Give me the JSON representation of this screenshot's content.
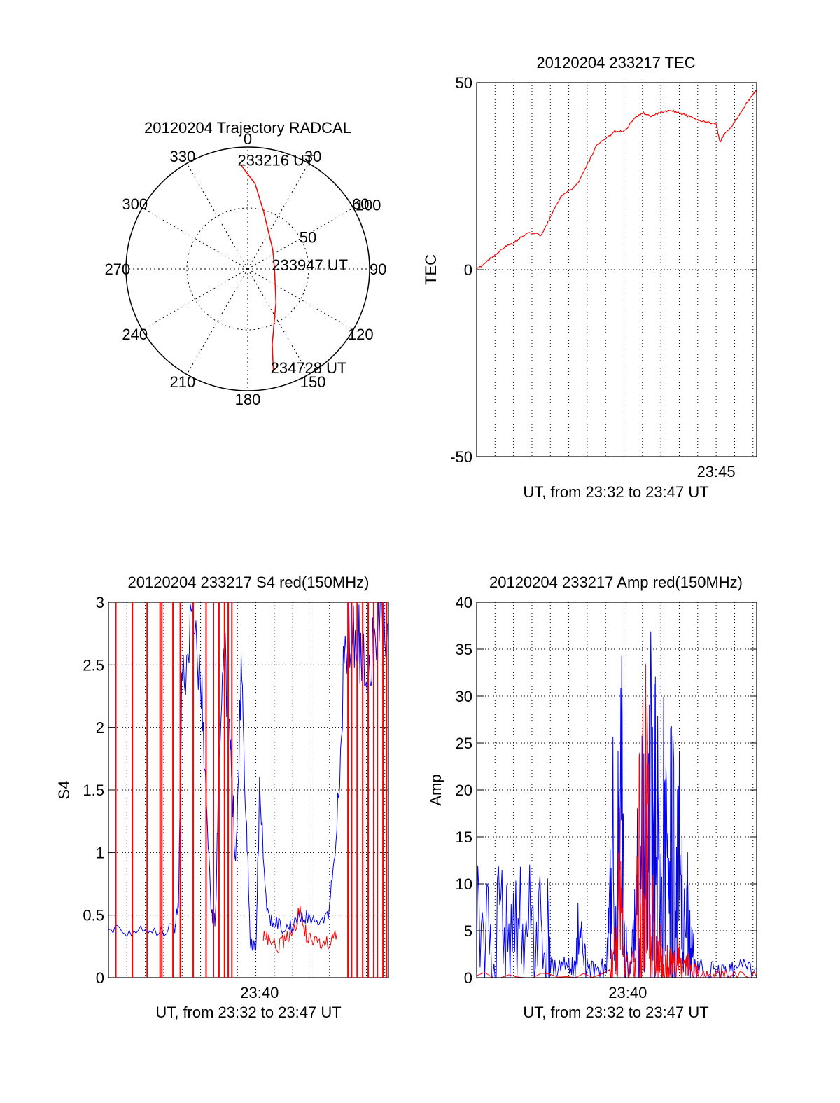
{
  "chart_data": [
    {
      "type": "polar",
      "title": "20120204 Trajectory RADCAL",
      "angle_labels": [
        "0",
        "30",
        "60",
        "90",
        "120",
        "150",
        "180",
        "210",
        "240",
        "270",
        "300",
        "330"
      ],
      "radial_labels": [
        "50",
        "100"
      ],
      "radial_max": 100,
      "trajectory": {
        "color": "#ff0000",
        "points": [
          [
            -4,
            86
          ],
          [
            5,
            70
          ],
          [
            16,
            48
          ],
          [
            52,
            26
          ],
          [
            90,
            22
          ],
          [
            140,
            36
          ],
          [
            162,
            65
          ],
          [
            166,
            87
          ]
        ]
      },
      "annotations": [
        {
          "text": "233216 UT",
          "az": -4,
          "r": 86
        },
        {
          "text": "233947 UT",
          "az": 90,
          "r": 22
        },
        {
          "text": "234728 UT",
          "az": 166,
          "r": 87
        }
      ],
      "grid": true
    },
    {
      "type": "line",
      "title": "20120204 233217 TEC",
      "xlabel": "UT, from 23:32 to 23:47 UT",
      "ylabel": "TEC",
      "xlim": [
        0,
        15.2
      ],
      "ylim": [
        -50,
        50
      ],
      "xtick_labels": [
        {
          "x": 13.0,
          "label": "23:45"
        }
      ],
      "yticks": [
        -50,
        0,
        50
      ],
      "grid": true,
      "series": [
        {
          "color": "#ff0000",
          "x": [
            0,
            0.5,
            1.0,
            1.5,
            2.0,
            2.5,
            3.0,
            3.5,
            4.0,
            4.5,
            5.0,
            5.5,
            6.0,
            6.5,
            7.0,
            7.5,
            8.0,
            8.5,
            9.0,
            9.5,
            10.0,
            10.5,
            11.0,
            11.5,
            12.0,
            12.5,
            13.0,
            13.2,
            13.4,
            13.8,
            14.2,
            14.6,
            15.0,
            15.2
          ],
          "y": [
            0,
            2,
            4,
            6,
            7,
            9,
            10,
            9,
            14,
            19,
            21,
            23,
            28,
            33,
            35,
            37,
            37,
            40,
            42,
            41,
            42,
            42.5,
            42,
            41,
            40,
            39.5,
            39,
            34,
            36,
            38,
            41,
            44,
            47,
            48
          ]
        }
      ]
    },
    {
      "type": "line",
      "title": "20120204 233217 S4 red(150MHz)",
      "xlabel": "UT, from 23:32 to 23:47 UT",
      "ylabel": "S4",
      "xlim": [
        0,
        15.2
      ],
      "ylim": [
        0,
        3
      ],
      "xtick_labels": [
        {
          "x": 8.2,
          "label": "23:40"
        }
      ],
      "yticks": [
        0,
        0.5,
        1,
        1.5,
        2,
        2.5,
        3
      ],
      "ytick_labels": [
        "0",
        "0.5",
        "1",
        "1.5",
        "2",
        "2.5",
        "3"
      ],
      "grid": true,
      "series": [
        {
          "color": "#0000ff",
          "x": [
            0,
            1.0,
            2.0,
            3.0,
            3.6,
            3.8,
            4.0,
            4.5,
            5.0,
            5.3,
            5.6,
            5.8,
            6.0,
            6.3,
            6.6,
            6.9,
            7.2,
            7.5,
            7.7,
            8.0,
            8.2,
            8.6,
            9.0,
            9.5,
            10.0,
            10.5,
            11.0,
            11.5,
            12.0,
            12.4,
            12.8,
            13.2,
            13.6,
            14.0,
            14.4,
            14.8,
            15.2
          ],
          "y": [
            0.4,
            0.38,
            0.39,
            0.38,
            0.4,
            0.6,
            2.5,
            2.7,
            2.5,
            1.4,
            0.5,
            0.45,
            1.6,
            2.6,
            1.8,
            1.0,
            2.4,
            1.2,
            0.3,
            0.2,
            1.5,
            0.5,
            0.45,
            0.4,
            0.42,
            0.5,
            0.45,
            0.4,
            0.55,
            1.2,
            2.6,
            2.8,
            2.7,
            2.5,
            2.7,
            2.9,
            2.6
          ]
        },
        {
          "color": "#ff0000",
          "x": [
            8.4,
            8.8,
            9.2,
            9.6,
            10.0,
            10.4,
            10.8,
            11.2,
            11.6,
            12.0,
            12.4
          ],
          "y": [
            0.35,
            0.3,
            0.25,
            0.3,
            0.35,
            0.55,
            0.3,
            0.28,
            0.25,
            0.3,
            0.35
          ]
        }
      ]
    },
    {
      "type": "line",
      "title": "20120204 233217 Amp red(150MHz)",
      "xlabel": "UT, from 23:32 to 23:47 UT",
      "ylabel": "Amp",
      "xlim": [
        0,
        15.2
      ],
      "ylim": [
        0,
        40
      ],
      "xtick_labels": [
        {
          "x": 8.2,
          "label": "23:40"
        }
      ],
      "yticks": [
        0,
        5,
        10,
        15,
        20,
        25,
        30,
        35,
        40
      ],
      "grid": true,
      "series": [
        {
          "color": "#0000ff",
          "x": [
            0,
            0.5,
            1.0,
            1.5,
            2.0,
            2.5,
            3.0,
            3.5,
            3.9,
            4.0,
            4.5,
            5.0,
            5.3,
            5.5,
            5.8,
            6.0,
            6.5,
            7.0,
            7.2,
            7.4,
            7.6,
            7.8,
            8.0,
            8.2,
            8.4,
            8.6,
            8.8,
            9.0,
            9.2,
            9.4,
            9.6,
            9.8,
            10.0,
            10.2,
            10.4,
            10.6,
            10.8,
            11.0,
            11.2,
            11.4,
            11.6,
            11.8,
            12.0,
            12.5,
            13.0,
            13.5,
            14.0,
            14.5,
            15.2
          ],
          "y": [
            6,
            5,
            5.5,
            5,
            6,
            5,
            5.5,
            5,
            5,
            1.5,
            1,
            1,
            1.2,
            4,
            2,
            1,
            0.8,
            1,
            5,
            12,
            3,
            30,
            5,
            1,
            1.5,
            6,
            10,
            13,
            9,
            18,
            12,
            20,
            9,
            15,
            8,
            16,
            7,
            12,
            5,
            7,
            3,
            2,
            1,
            1,
            0.8,
            1,
            0.9,
            1,
            1
          ]
        },
        {
          "color": "#ff0000",
          "x": [
            0,
            3.5,
            7.2,
            7.4,
            7.6,
            7.8,
            8.0,
            8.3,
            8.6,
            8.8,
            9.0,
            9.2,
            9.4,
            9.6,
            9.8,
            10.0,
            10.2,
            10.4,
            10.6,
            10.8,
            11.0,
            11.2,
            11.4,
            11.6,
            11.8,
            12.0,
            12.5,
            13.0,
            13.5,
            14.0,
            15.2
          ],
          "y": [
            0,
            0.1,
            0.5,
            6,
            3,
            12,
            2,
            0.5,
            2,
            10,
            15,
            18,
            6,
            5,
            1.5,
            3,
            1,
            2,
            1.5,
            1,
            2.5,
            1,
            1.5,
            0.8,
            1,
            0.5,
            0.3,
            0.2,
            0.2,
            0.1,
            0.1
          ]
        }
      ]
    }
  ]
}
